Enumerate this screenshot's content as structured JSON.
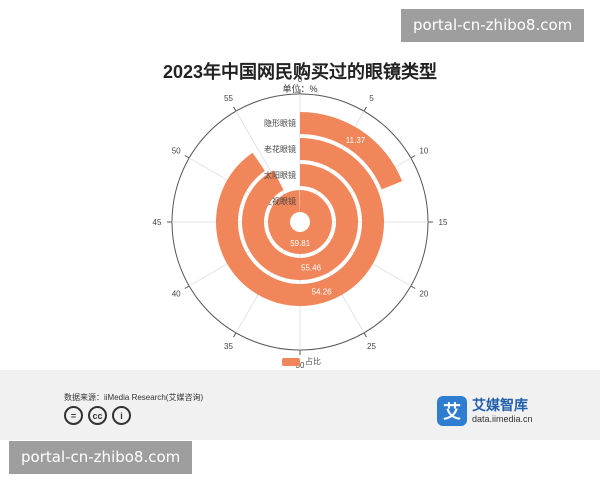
{
  "watermark": "portal-cn-zhibo8.com",
  "chart_data": {
    "type": "radial-bar",
    "title": "2023年中国网民购买过的眼镜类型",
    "unit_label": "单位：%",
    "categories": [
      "近视眼镜",
      "太阳眼镜",
      "老花眼镜",
      "隐形眼镜"
    ],
    "series": [
      {
        "name": "占比",
        "values": [
          59.81,
          55.46,
          54.26,
          11.37
        ]
      }
    ],
    "angle_axis": {
      "min": 0,
      "max": 60,
      "ticks": [
        0,
        5,
        10,
        15,
        20,
        25,
        30,
        35,
        40,
        45,
        50,
        55
      ]
    },
    "color": "#f0865a"
  },
  "footer": {
    "source": "数据来源：iiMedia Research(艾媒咨询)",
    "cc_icons": [
      "=",
      "cc",
      "i"
    ],
    "logo_mark": "艾",
    "logo_name": "艾媒智库",
    "logo_url": "data.iimedia.cn"
  }
}
